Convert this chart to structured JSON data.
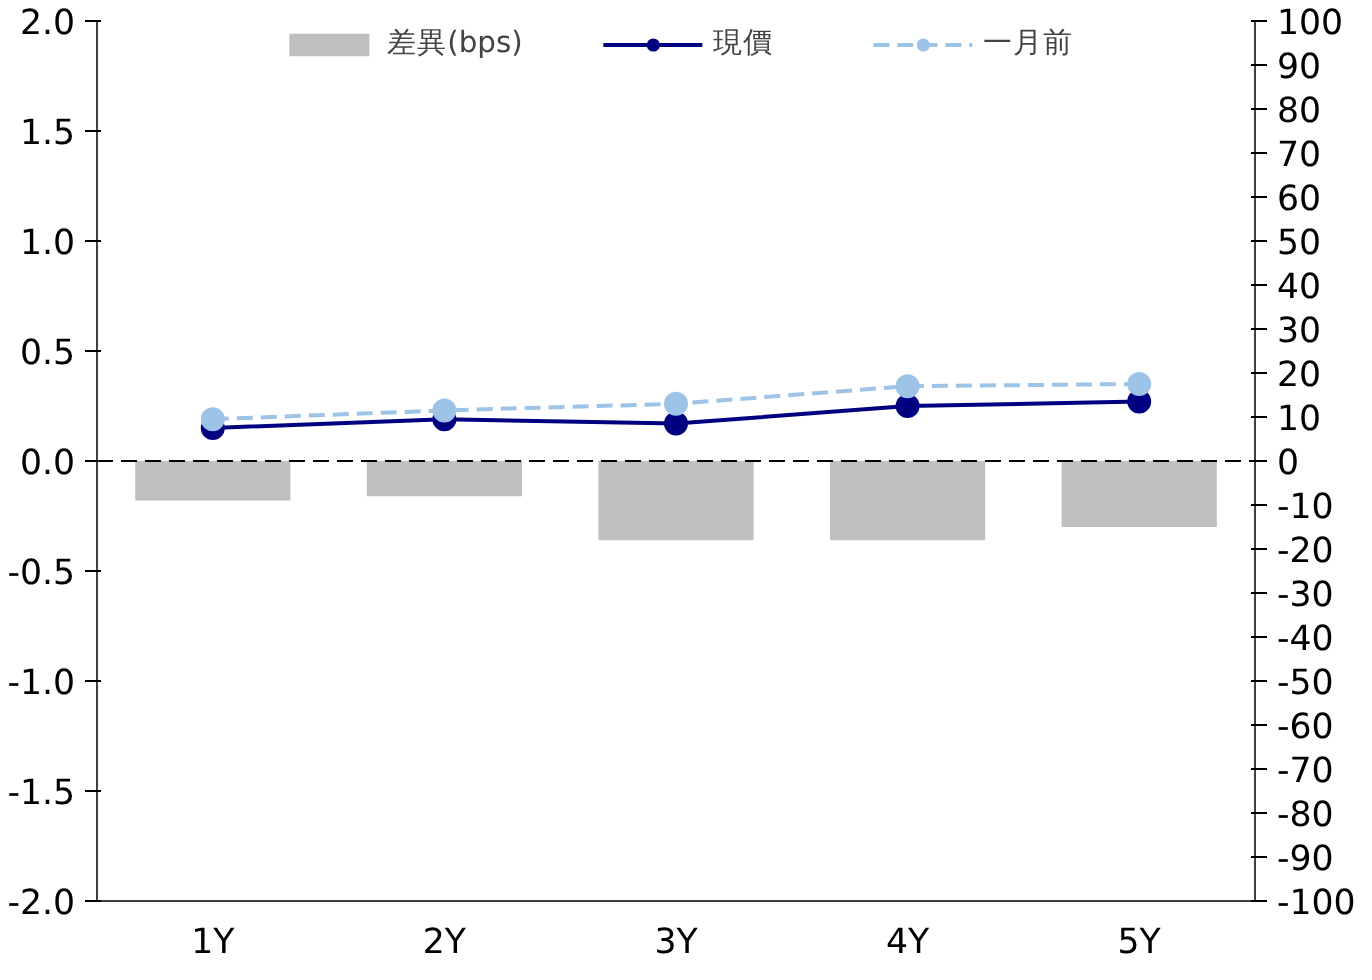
{
  "chart_data": {
    "type": "line",
    "categories": [
      "1Y",
      "2Y",
      "3Y",
      "4Y",
      "5Y"
    ],
    "series": [
      {
        "name": "差異(bps)",
        "type": "bar",
        "axis": "y2",
        "color": "#bfbfbf",
        "values": [
          -9,
          -8,
          -18,
          -18,
          -15
        ]
      },
      {
        "name": "現價",
        "color": "#000080",
        "marker": "circle",
        "line_style": "solid",
        "values": [
          0.15,
          0.19,
          0.17,
          0.25,
          0.27
        ]
      },
      {
        "name": "一月前",
        "color": "#9dc3e6",
        "marker": "circle",
        "line_style": "dashed",
        "values": [
          0.19,
          0.23,
          0.26,
          0.34,
          0.35
        ]
      }
    ],
    "ylim": [
      -2,
      2
    ],
    "yticks": [
      {
        "value": -2,
        "label": "-2.0"
      },
      {
        "value": -1.5,
        "label": "-1.5"
      },
      {
        "value": -1,
        "label": "-1.0"
      },
      {
        "value": -0.5,
        "label": "-0.5"
      },
      {
        "value": 0,
        "label": "0.0"
      },
      {
        "value": 0.5,
        "label": "0.5"
      },
      {
        "value": 1,
        "label": "1.0"
      },
      {
        "value": 1.5,
        "label": "1.5"
      },
      {
        "value": 2,
        "label": "2.0"
      }
    ],
    "y2lim": [
      -100,
      100
    ],
    "y2ticks": [
      -100,
      -90,
      -80,
      -70,
      -60,
      -50,
      -40,
      -30,
      -20,
      -10,
      0,
      10,
      20,
      30,
      40,
      50,
      60,
      70,
      80,
      90,
      100
    ],
    "ref_lines": [
      {
        "axis": "y",
        "value": 0,
        "color": "#000000",
        "line_style": "dashed"
      }
    ],
    "grid": false,
    "legend": "top"
  }
}
